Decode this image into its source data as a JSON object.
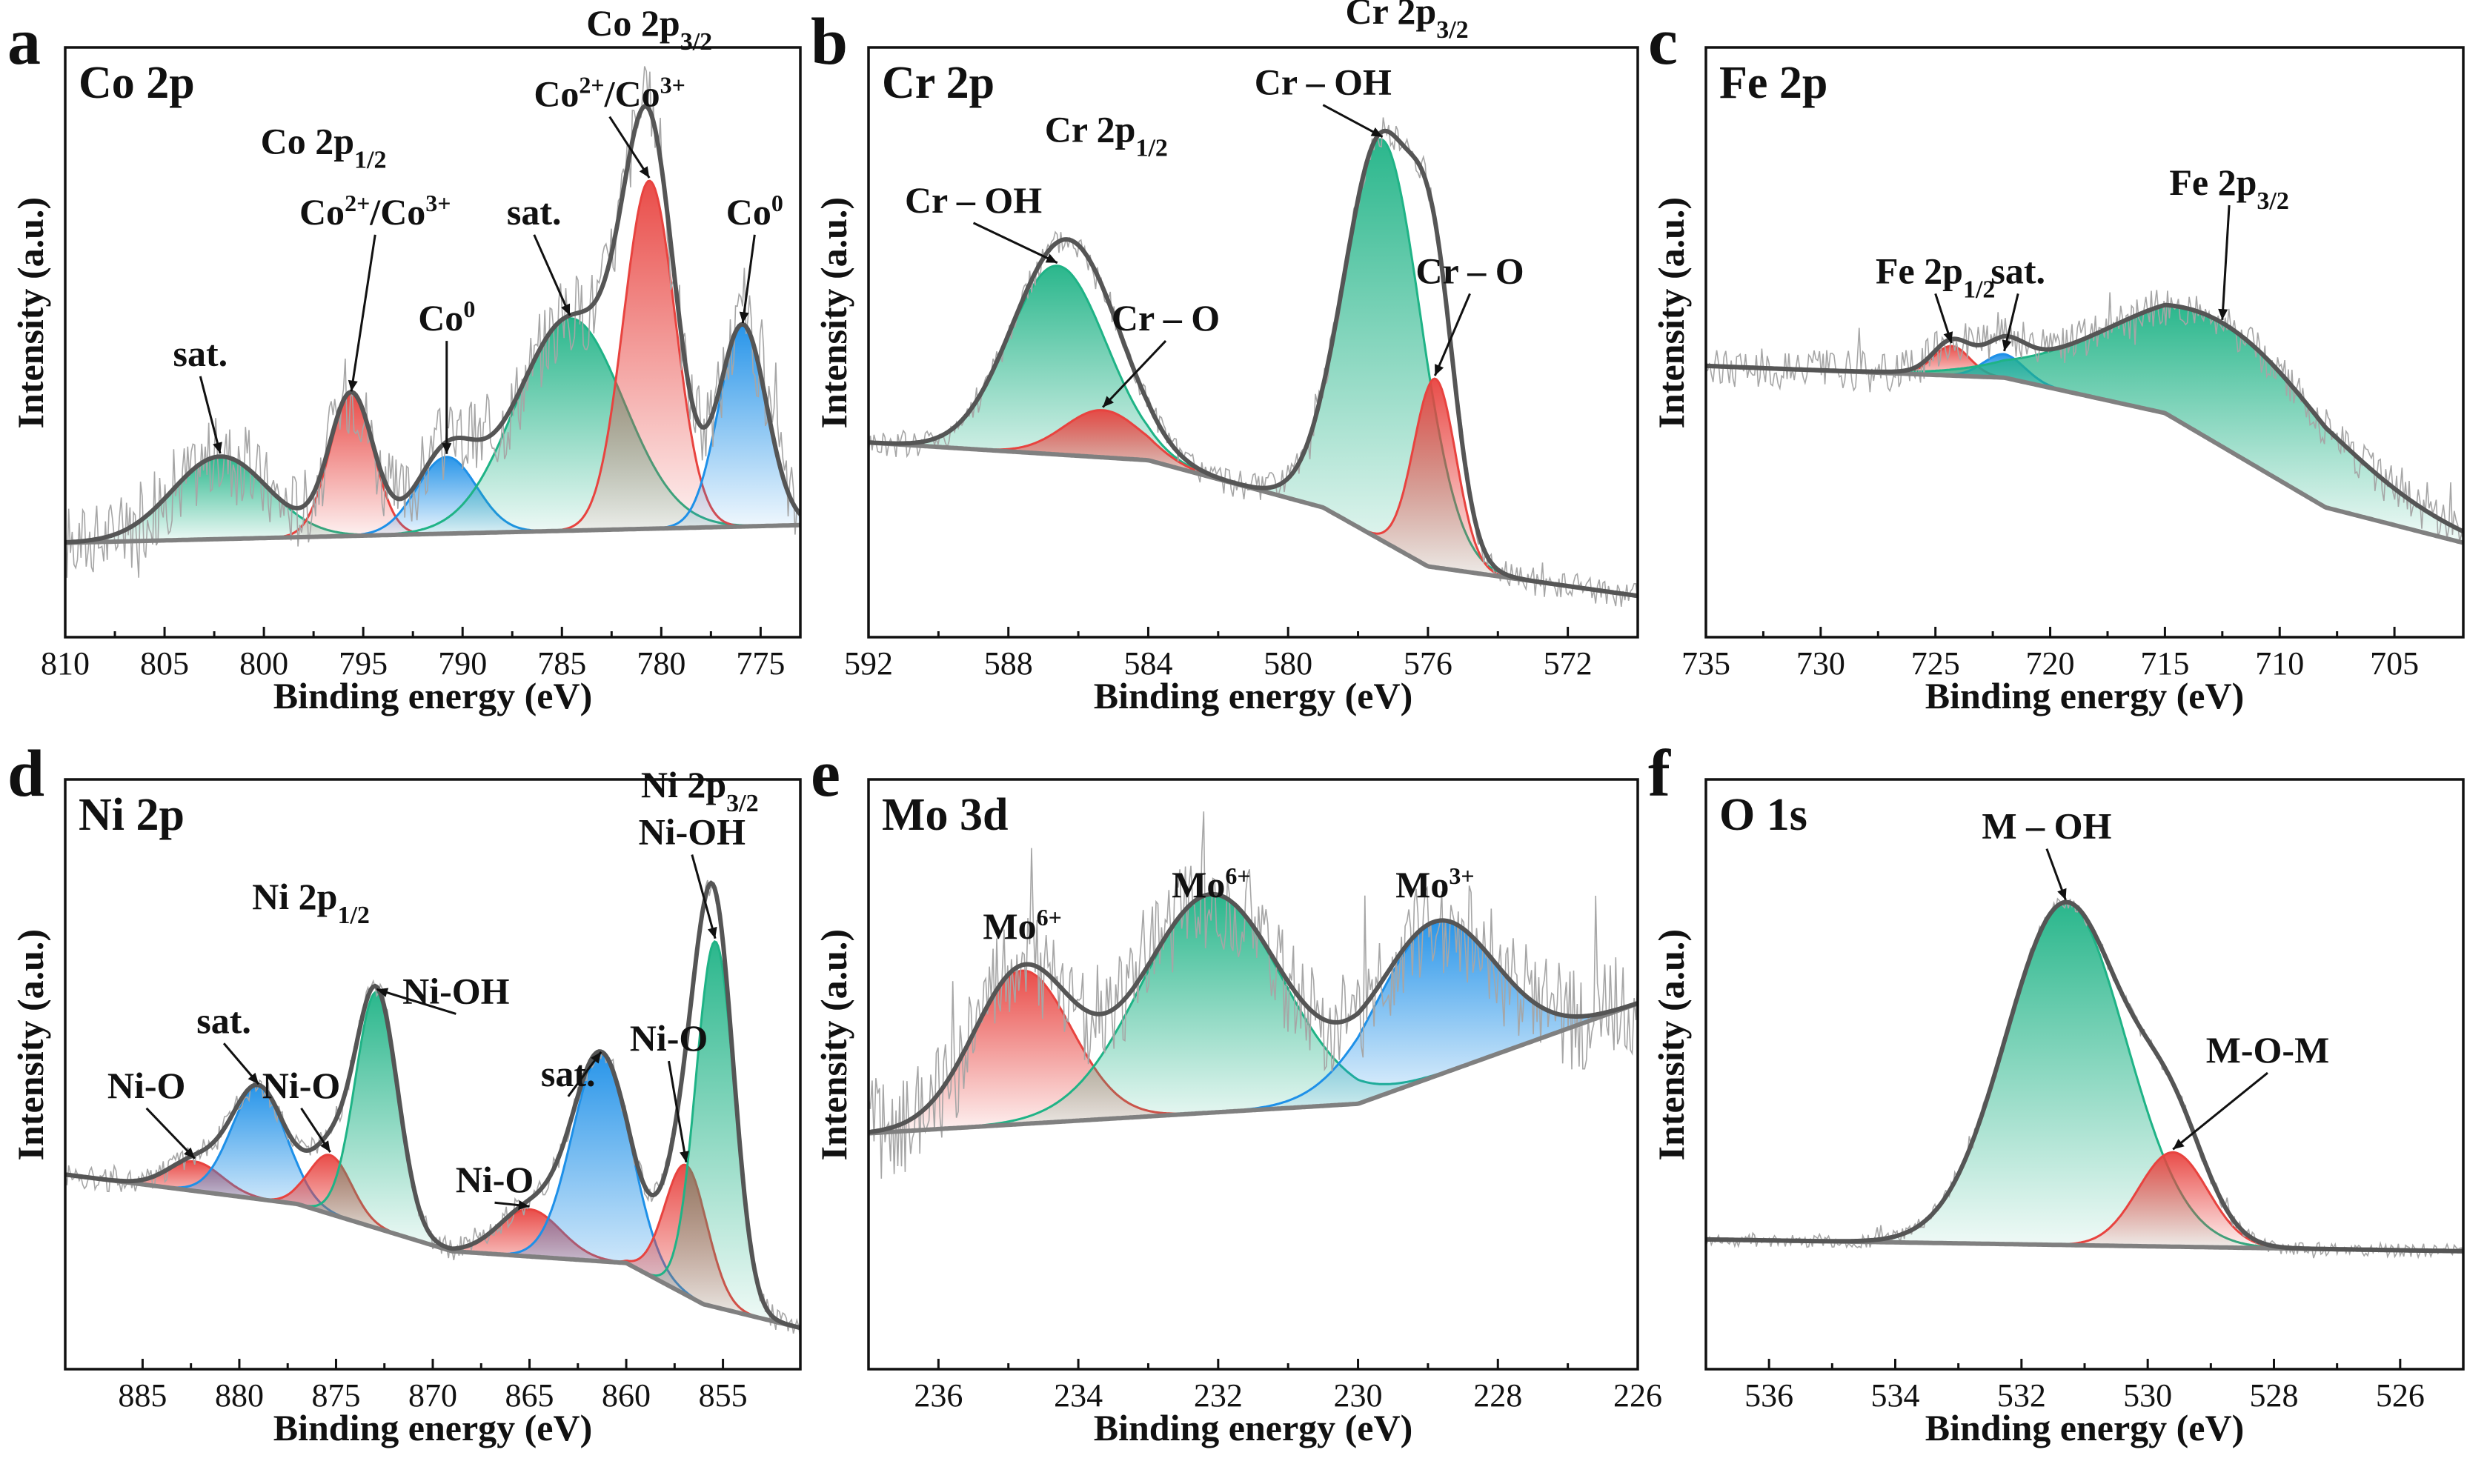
{
  "chart_data": [
    {
      "type": "line",
      "panel_letter": "a",
      "element": "Co 2p",
      "xlabel": "Binding energy (eV)",
      "ylabel": "Intensity (a.u.)",
      "xlim": [
        810,
        773
      ],
      "xticks": [
        810,
        805,
        800,
        795,
        790,
        785,
        780,
        775
      ],
      "ylim": [
        0,
        100
      ],
      "background": [
        [
          810,
          16
        ],
        [
          773,
          19
        ]
      ],
      "series": [
        {
          "center": 802.2,
          "amp": 14,
          "width": 2.4,
          "color": "#1fb386"
        },
        {
          "center": 795.6,
          "amp": 24,
          "width": 1.1,
          "color": "#e8433f"
        },
        {
          "center": 790.8,
          "amp": 13,
          "width": 1.5,
          "color": "#1e90e8"
        },
        {
          "center": 784.6,
          "amp": 36,
          "width": 2.7,
          "color": "#1fb386"
        },
        {
          "center": 780.6,
          "amp": 59,
          "width": 1.3,
          "color": "#e8433f"
        },
        {
          "center": 775.9,
          "amp": 34,
          "width": 1.2,
          "color": "#1e90e8"
        }
      ],
      "annotations": [
        {
          "text": "sat.",
          "x": 802.2,
          "lx": 803.2,
          "ly": 46
        },
        {
          "text": "Co 2p1/2",
          "main": "Co 2p",
          "sub": "1/2",
          "lx": 797,
          "ly": 82
        },
        {
          "text": "Co2+/Co3+",
          "x": 795.6,
          "lx": 794.4,
          "ly": 70,
          "sup1": "2+",
          "sup2": "3+",
          "base1": "Co",
          "base2": "/Co"
        },
        {
          "text": "Co0",
          "x": 790.8,
          "lx": 790.8,
          "ly": 52,
          "base1": "Co",
          "sup1": "0"
        },
        {
          "text": "sat.",
          "x": 784.6,
          "lx": 786.4,
          "ly": 70
        },
        {
          "text": "Co2+/Co3+",
          "x": 780.6,
          "lx": 782.6,
          "ly": 90,
          "sup1": "2+",
          "sup2": "3+",
          "base1": "Co",
          "base2": "/Co"
        },
        {
          "text": "Co 2p3/2",
          "main": "Co 2p",
          "sub": "3/2",
          "lx": 780.6,
          "ly": 102
        },
        {
          "text": "Co0",
          "x": 775.9,
          "lx": 775.3,
          "ly": 70,
          "base1": "Co",
          "sup1": "0"
        }
      ]
    },
    {
      "type": "line",
      "panel_letter": "b",
      "element": "Cr 2p",
      "xlabel": "Binding energy (eV)",
      "ylabel": "Intensity (a.u.)",
      "xlim": [
        592,
        570
      ],
      "xticks": [
        592,
        588,
        584,
        580,
        576,
        572
      ],
      "ylim": [
        0,
        100
      ],
      "background": [
        [
          592,
          33
        ],
        [
          584,
          30
        ],
        [
          579,
          22
        ],
        [
          576,
          12
        ],
        [
          570,
          7
        ]
      ],
      "series": [
        {
          "center": 586.6,
          "amp": 32,
          "width": 1.4,
          "color": "#1fb386"
        },
        {
          "center": 585.3,
          "amp": 8,
          "width": 1.1,
          "color": "#e8433f"
        },
        {
          "center": 577.3,
          "amp": 68,
          "width": 1.1,
          "color": "#1fb386"
        },
        {
          "center": 575.8,
          "amp": 32,
          "width": 0.6,
          "color": "#e8433f"
        }
      ],
      "annotations": [
        {
          "text": "Cr – OH",
          "x": 586.6,
          "lx": 589.0,
          "ly": 72
        },
        {
          "text": "Cr 2p1/2",
          "main": "Cr 2p",
          "sub": "1/2",
          "lx": 585.2,
          "ly": 84
        },
        {
          "text": "Cr – O",
          "x": 585.3,
          "lx": 583.5,
          "ly": 52
        },
        {
          "text": "Cr – OH",
          "x": 577.3,
          "lx": 579.0,
          "ly": 92
        },
        {
          "text": "Cr 2p3/2",
          "main": "Cr 2p",
          "sub": "3/2",
          "lx": 576.6,
          "ly": 104
        },
        {
          "text": "Cr – O",
          "x": 575.8,
          "lx": 574.8,
          "ly": 60
        }
      ]
    },
    {
      "type": "line",
      "panel_letter": "c",
      "element": "Fe 2p",
      "xlabel": "Binding energy (eV)",
      "ylabel": "Intensity (a.u.)",
      "xlim": [
        735,
        702
      ],
      "xticks": [
        735,
        730,
        725,
        720,
        715,
        710,
        705
      ],
      "ylim": [
        0,
        100
      ],
      "background": [
        [
          735,
          46
        ],
        [
          722,
          44
        ],
        [
          715,
          38
        ],
        [
          708,
          22
        ],
        [
          702,
          16
        ]
      ],
      "series": [
        {
          "center": 724.3,
          "amp": 5,
          "width": 0.8,
          "color": "#e8433f"
        },
        {
          "center": 722.0,
          "amp": 4,
          "width": 0.9,
          "color": "#1e90e8"
        },
        {
          "center": 712.5,
          "amp": 21,
          "width": 4.8,
          "color": "#1fb386"
        }
      ],
      "annotations": [
        {
          "text": "Fe 2p1/2",
          "main": "Fe 2p",
          "sub": "1/2",
          "x": 724.3,
          "lx": 725.0,
          "ly": 60
        },
        {
          "text": "sat.",
          "x": 722.0,
          "lx": 721.4,
          "ly": 60
        },
        {
          "text": "Fe 2p3/2",
          "main": "Fe 2p",
          "sub": "3/2",
          "x": 712.5,
          "lx": 712.2,
          "ly": 75
        }
      ]
    },
    {
      "type": "line",
      "panel_letter": "d",
      "element": "Ni 2p",
      "xlabel": "Binding energy (eV)",
      "ylabel": "Intensity (a.u.)",
      "xlim": [
        889,
        851
      ],
      "xticks": [
        885,
        880,
        875,
        870,
        865,
        860,
        855
      ],
      "ylim": [
        0,
        100
      ],
      "background": [
        [
          889,
          33
        ],
        [
          877,
          28
        ],
        [
          869,
          20
        ],
        [
          860,
          18
        ],
        [
          856,
          11
        ],
        [
          851,
          7
        ]
      ],
      "series": [
        {
          "center": 882.3,
          "amp": 5,
          "width": 1.4,
          "color": "#e8433f"
        },
        {
          "center": 879.0,
          "amp": 19,
          "width": 1.4,
          "color": "#1e90e8"
        },
        {
          "center": 875.3,
          "amp": 10,
          "width": 1.1,
          "color": "#e8433f"
        },
        {
          "center": 872.9,
          "amp": 40,
          "width": 1.1,
          "color": "#1fb386"
        },
        {
          "center": 865.0,
          "amp": 8,
          "width": 1.6,
          "color": "#e8433f"
        },
        {
          "center": 861.3,
          "amp": 35,
          "width": 1.5,
          "color": "#1e90e8"
        },
        {
          "center": 856.9,
          "amp": 22,
          "width": 1.1,
          "color": "#e8433f"
        },
        {
          "center": 855.4,
          "amp": 62,
          "width": 1.0,
          "color": "#1fb386"
        }
      ],
      "annotations": [
        {
          "text": "Ni-O",
          "x": 882.3,
          "lx": 884.8,
          "ly": 46
        },
        {
          "text": "sat.",
          "x": 879.0,
          "lx": 880.8,
          "ly": 57
        },
        {
          "text": "Ni-O",
          "x": 875.3,
          "lx": 876.8,
          "ly": 46
        },
        {
          "text": "Ni 2p1/2",
          "main": "Ni 2p",
          "sub": "1/2",
          "lx": 876.3,
          "ly": 78
        },
        {
          "text": "Ni-OH",
          "x": 872.9,
          "lx": 868.8,
          "ly": 62
        },
        {
          "text": "Ni-O",
          "x": 865.0,
          "lx": 866.8,
          "ly": 30
        },
        {
          "text": "sat.",
          "x": 861.3,
          "lx": 863.0,
          "ly": 48
        },
        {
          "text": "Ni-O",
          "x": 856.9,
          "lx": 857.8,
          "ly": 54
        },
        {
          "text": "Ni 2p3/2",
          "main": "Ni 2p",
          "sub": "3/2",
          "lx": 856.2,
          "ly": 97
        },
        {
          "text": "Ni-OH",
          "x": 855.4,
          "lx": 856.6,
          "ly": 89
        }
      ]
    },
    {
      "type": "line",
      "panel_letter": "e",
      "element": "Mo 3d",
      "xlabel": "Binding energy (eV)",
      "ylabel": "Intensity (a.u.)",
      "xlim": [
        237,
        226
      ],
      "xticks": [
        236,
        234,
        232,
        230,
        228,
        226
      ],
      "ylim": [
        0,
        100
      ],
      "background": [
        [
          237,
          40
        ],
        [
          230,
          45
        ],
        [
          226,
          62
        ]
      ],
      "series": [
        {
          "center": 234.8,
          "amp": 26,
          "width": 0.7,
          "color": "#e8433f"
        },
        {
          "center": 232.1,
          "amp": 37,
          "width": 1.0,
          "color": "#1fb386"
        },
        {
          "center": 228.9,
          "amp": 26,
          "width": 0.85,
          "color": "#1e90e8"
        }
      ],
      "annotations": [
        {
          "text": "Mo6+",
          "base1": "Mo",
          "sup1": "6+",
          "lx": 234.8,
          "ly": 73
        },
        {
          "text": "Mo6+",
          "base1": "Mo",
          "sup1": "6+",
          "lx": 232.1,
          "ly": 80
        },
        {
          "text": "Mo3+",
          "base1": "Mo",
          "sup1": "3+",
          "lx": 228.9,
          "ly": 80
        }
      ]
    },
    {
      "type": "line",
      "panel_letter": "f",
      "element": "O 1s",
      "xlabel": "Binding energy (eV)",
      "ylabel": "Intensity (a.u.)",
      "xlim": [
        537,
        525
      ],
      "xticks": [
        536,
        534,
        532,
        530,
        528,
        526
      ],
      "ylim": [
        0,
        100
      ],
      "background": [
        [
          537,
          22
        ],
        [
          525,
          20
        ]
      ],
      "series": [
        {
          "center": 531.3,
          "amp": 58,
          "width": 0.95,
          "color": "#1fb386"
        },
        {
          "center": 529.6,
          "amp": 16,
          "width": 0.55,
          "color": "#e8433f"
        }
      ],
      "annotations": [
        {
          "text": "M – OH",
          "x": 531.3,
          "lx": 531.6,
          "ly": 90
        },
        {
          "text": "M-O-M",
          "x": 529.6,
          "lx": 528.1,
          "ly": 52
        }
      ]
    }
  ]
}
